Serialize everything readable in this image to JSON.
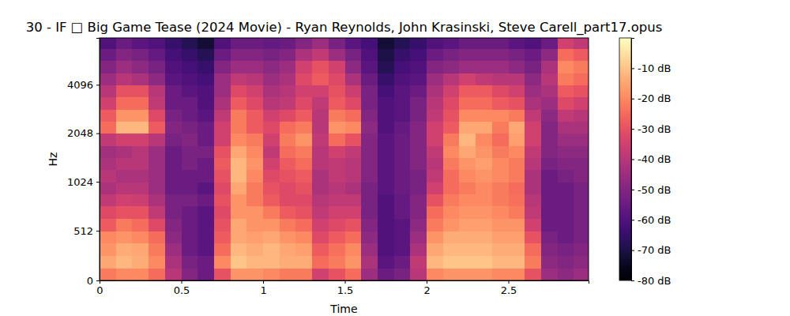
{
  "chart_data": {
    "type": "heatmap",
    "title": "30 - IF □ Big Game Tease (2024 Movie) - Ryan Reynolds, John Krasinski, Steve Carell_part17.opus",
    "x_label": "Time",
    "y_label": "Hz",
    "xlim": [
      0,
      2.99
    ],
    "xticks": [
      0,
      0.5,
      1,
      1.5,
      2,
      2.5
    ],
    "ylim": [
      0,
      8000
    ],
    "yticks": [
      0,
      512,
      1024,
      2048,
      4096
    ],
    "x_edges": [
      0,
      0.1,
      0.2,
      0.3,
      0.4,
      0.5,
      0.6,
      0.7,
      0.8,
      0.9,
      1.0,
      1.1,
      1.2,
      1.3,
      1.4,
      1.5,
      1.6,
      1.7,
      1.8,
      1.9,
      2.0,
      2.1,
      2.2,
      2.3,
      2.4,
      2.5,
      2.6,
      2.7,
      2.8,
      2.9,
      2.99
    ],
    "y_edges": [
      0,
      128,
      256,
      384,
      512,
      640,
      768,
      896,
      1024,
      1218,
      1448,
      1722,
      2048,
      2435,
      2896,
      3444,
      4096,
      4871,
      5793,
      6889,
      8000
    ],
    "values": [
      [
        -22,
        -15,
        -18,
        -20,
        -28,
        -32,
        -38,
        -42,
        -40,
        -42,
        -44,
        -38,
        -25,
        -28,
        -35,
        -40,
        -45,
        -50,
        -55,
        -60
      ],
      [
        -20,
        -12,
        -14,
        -18,
        -22,
        -30,
        -35,
        -40,
        -42,
        -40,
        -42,
        -35,
        -12,
        -18,
        -25,
        -30,
        -40,
        -45,
        -50,
        -55
      ],
      [
        -20,
        -14,
        -15,
        -20,
        -25,
        -30,
        -36,
        -40,
        -42,
        -40,
        -40,
        -35,
        -12,
        -18,
        -25,
        -30,
        -42,
        -48,
        -52,
        -58
      ],
      [
        -25,
        -20,
        -22,
        -25,
        -32,
        -38,
        -42,
        -45,
        -45,
        -45,
        -45,
        -40,
        -28,
        -32,
        -38,
        -40,
        -48,
        -52,
        -56,
        -60
      ],
      [
        -40,
        -42,
        -45,
        -48,
        -50,
        -52,
        -52,
        -55,
        -55,
        -55,
        -55,
        -52,
        -50,
        -52,
        -55,
        -55,
        -58,
        -60,
        -62,
        -65
      ],
      [
        -50,
        -52,
        -55,
        -55,
        -55,
        -55,
        -52,
        -55,
        -55,
        -52,
        -52,
        -50,
        -52,
        -55,
        -55,
        -58,
        -60,
        -62,
        -65,
        -68
      ],
      [
        -55,
        -55,
        -58,
        -58,
        -58,
        -58,
        -55,
        -58,
        -55,
        -55,
        -52,
        -55,
        -55,
        -58,
        -60,
        -60,
        -62,
        -65,
        -68,
        -72
      ],
      [
        -30,
        -20,
        -25,
        -28,
        -30,
        -32,
        -30,
        -32,
        -30,
        -28,
        -30,
        -35,
        -35,
        -38,
        -42,
        -45,
        -45,
        -50,
        -55,
        -60
      ],
      [
        -18,
        -10,
        -12,
        -15,
        -15,
        -18,
        -18,
        -15,
        -12,
        -12,
        -15,
        -20,
        -22,
        -22,
        -28,
        -32,
        -38,
        -45,
        -50,
        -55
      ],
      [
        -18,
        -12,
        -14,
        -16,
        -18,
        -18,
        -22,
        -22,
        -20,
        -18,
        -20,
        -22,
        -28,
        -28,
        -32,
        -35,
        -40,
        -45,
        -50,
        -55
      ],
      [
        -20,
        -12,
        -12,
        -15,
        -18,
        -22,
        -28,
        -30,
        -32,
        -35,
        -38,
        -35,
        -32,
        -35,
        -40,
        -42,
        -45,
        -48,
        -52,
        -56
      ],
      [
        -22,
        -14,
        -15,
        -18,
        -22,
        -28,
        -32,
        -32,
        -30,
        -28,
        -25,
        -22,
        -25,
        -32,
        -38,
        -40,
        -42,
        -45,
        -50,
        -55
      ],
      [
        -22,
        -14,
        -16,
        -20,
        -25,
        -30,
        -32,
        -30,
        -28,
        -25,
        -22,
        -18,
        -22,
        -28,
        -32,
        -35,
        -32,
        -35,
        -42,
        -50
      ],
      [
        -35,
        -25,
        -28,
        -32,
        -35,
        -38,
        -40,
        -42,
        -42,
        -40,
        -40,
        -38,
        -40,
        -40,
        -38,
        -35,
        -28,
        -30,
        -38,
        -45
      ],
      [
        -30,
        -22,
        -24,
        -28,
        -32,
        -35,
        -38,
        -40,
        -38,
        -38,
        -35,
        -25,
        -18,
        -22,
        -28,
        -30,
        -32,
        -35,
        -45,
        -52
      ],
      [
        -25,
        -18,
        -20,
        -25,
        -30,
        -35,
        -38,
        -42,
        -40,
        -40,
        -38,
        -30,
        -20,
        -25,
        -32,
        -36,
        -42,
        -48,
        -52,
        -58
      ],
      [
        -45,
        -42,
        -45,
        -48,
        -50,
        -52,
        -52,
        -52,
        -50,
        -50,
        -50,
        -50,
        -48,
        -50,
        -52,
        -52,
        -55,
        -58,
        -60,
        -62
      ],
      [
        -55,
        -58,
        -60,
        -60,
        -60,
        -60,
        -60,
        -58,
        -58,
        -58,
        -58,
        -58,
        -60,
        -60,
        -60,
        -62,
        -65,
        -68,
        -70,
        -72
      ],
      [
        -52,
        -55,
        -58,
        -58,
        -58,
        -56,
        -56,
        -55,
        -55,
        -55,
        -55,
        -55,
        -56,
        -58,
        -58,
        -58,
        -60,
        -62,
        -65,
        -68
      ],
      [
        -40,
        -38,
        -42,
        -45,
        -48,
        -50,
        -50,
        -52,
        -52,
        -50,
        -50,
        -50,
        -50,
        -52,
        -52,
        -55,
        -58,
        -60,
        -62,
        -65
      ],
      [
        -20,
        -12,
        -15,
        -18,
        -22,
        -25,
        -30,
        -35,
        -38,
        -40,
        -38,
        -35,
        -35,
        -38,
        -40,
        -42,
        -45,
        -50,
        -55,
        -60
      ],
      [
        -18,
        -10,
        -12,
        -14,
        -18,
        -20,
        -22,
        -25,
        -25,
        -22,
        -20,
        -22,
        -28,
        -30,
        -32,
        -35,
        -40,
        -48,
        -52,
        -58
      ],
      [
        -18,
        -10,
        -12,
        -14,
        -16,
        -18,
        -20,
        -22,
        -20,
        -18,
        -15,
        -12,
        -15,
        -20,
        -25,
        -28,
        -35,
        -45,
        -50,
        -55
      ],
      [
        -18,
        -10,
        -12,
        -14,
        -16,
        -18,
        -20,
        -20,
        -18,
        -16,
        -18,
        -20,
        -15,
        -20,
        -25,
        -28,
        -38,
        -45,
        -50,
        -55
      ],
      [
        -20,
        -12,
        -14,
        -16,
        -18,
        -20,
        -22,
        -22,
        -20,
        -20,
        -22,
        -25,
        -22,
        -20,
        -28,
        -32,
        -40,
        -45,
        -50,
        -55
      ],
      [
        -20,
        -12,
        -14,
        -16,
        -18,
        -22,
        -24,
        -25,
        -22,
        -22,
        -20,
        -16,
        -15,
        -22,
        -30,
        -35,
        -40,
        -48,
        -52,
        -58
      ],
      [
        -30,
        -22,
        -25,
        -30,
        -35,
        -38,
        -40,
        -42,
        -42,
        -40,
        -38,
        -35,
        -35,
        -38,
        -42,
        -45,
        -48,
        -52,
        -55,
        -60
      ],
      [
        -45,
        -48,
        -50,
        -52,
        -55,
        -55,
        -55,
        -55,
        -55,
        -52,
        -50,
        -50,
        -50,
        -48,
        -45,
        -42,
        -40,
        -42,
        -48,
        -55
      ],
      [
        -48,
        -50,
        -52,
        -55,
        -55,
        -55,
        -55,
        -55,
        -52,
        -50,
        -48,
        -45,
        -42,
        -38,
        -32,
        -28,
        -22,
        -20,
        -25,
        -35
      ],
      [
        -45,
        -48,
        -50,
        -52,
        -52,
        -52,
        -52,
        -52,
        -50,
        -50,
        -48,
        -45,
        -42,
        -40,
        -35,
        -30,
        -25,
        -22,
        -28,
        -38
      ]
    ],
    "colorbar": {
      "range": [
        -80,
        0
      ],
      "ticks": [
        {
          "value": -10,
          "label": "-10 dB"
        },
        {
          "value": -20,
          "label": "-20 dB"
        },
        {
          "value": -30,
          "label": "-30 dB"
        },
        {
          "value": -40,
          "label": "-40 dB"
        },
        {
          "value": -50,
          "label": "-50 dB"
        },
        {
          "value": -60,
          "label": "-60 dB"
        },
        {
          "value": -70,
          "label": "-70 dB"
        },
        {
          "value": -80,
          "label": "-80 dB"
        }
      ]
    }
  }
}
